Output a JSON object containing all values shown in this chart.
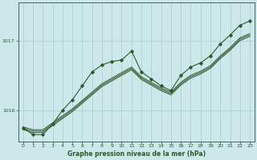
{
  "title": "Graphe pression niveau de la mer (hPa)",
  "background_color": "#cce8ea",
  "line_color": "#2d5a2d",
  "grid_color": "#aacece",
  "x_min": 0,
  "x_max": 23,
  "y_min": 1015.55,
  "y_max": 1017.55,
  "yticks": [
    1016,
    1017
  ],
  "xticks": [
    0,
    1,
    2,
    3,
    4,
    5,
    6,
    7,
    8,
    9,
    10,
    11,
    12,
    13,
    14,
    15,
    16,
    17,
    18,
    19,
    20,
    21,
    22,
    23
  ],
  "main_y": [
    1015.75,
    1015.65,
    1015.65,
    1015.8,
    1016.0,
    1016.15,
    1016.35,
    1016.55,
    1016.65,
    1016.7,
    1016.72,
    1016.85,
    1016.55,
    1016.45,
    1016.35,
    1016.28,
    1016.5,
    1016.62,
    1016.68,
    1016.78,
    1016.95,
    1017.08,
    1017.22,
    1017.28
  ],
  "trend1_y": [
    1015.72,
    1015.68,
    1015.68,
    1015.78,
    1015.88,
    1015.98,
    1016.1,
    1016.22,
    1016.34,
    1016.42,
    1016.5,
    1016.58,
    1016.44,
    1016.36,
    1016.28,
    1016.22,
    1016.36,
    1016.46,
    1016.52,
    1016.6,
    1016.74,
    1016.86,
    1017.0,
    1017.06
  ],
  "trend2_y": [
    1015.74,
    1015.7,
    1015.7,
    1015.8,
    1015.9,
    1016.0,
    1016.12,
    1016.24,
    1016.36,
    1016.44,
    1016.52,
    1016.6,
    1016.46,
    1016.38,
    1016.3,
    1016.24,
    1016.38,
    1016.48,
    1016.54,
    1016.62,
    1016.76,
    1016.88,
    1017.02,
    1017.08
  ],
  "trend3_y": [
    1015.76,
    1015.72,
    1015.72,
    1015.82,
    1015.92,
    1016.02,
    1016.14,
    1016.26,
    1016.38,
    1016.46,
    1016.54,
    1016.62,
    1016.48,
    1016.4,
    1016.32,
    1016.26,
    1016.4,
    1016.5,
    1016.56,
    1016.64,
    1016.78,
    1016.9,
    1017.04,
    1017.1
  ]
}
